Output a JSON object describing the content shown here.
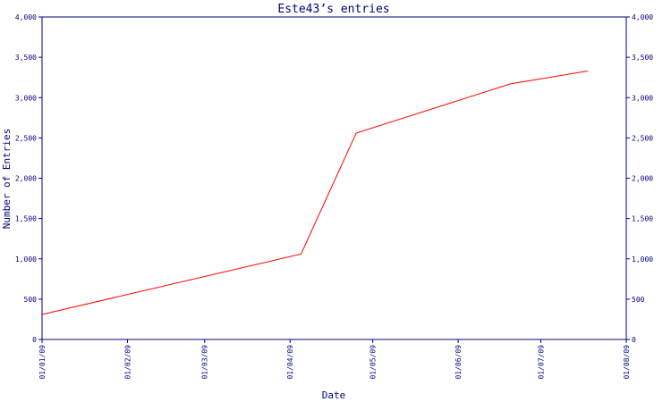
{
  "chart_data": {
    "type": "line",
    "title": "Este43’s entries",
    "xlabel": "Date",
    "ylabel": "Number of Entries",
    "ylim": [
      0,
      4000
    ],
    "xlim": [
      "2009-01-01",
      "2009-08-01"
    ],
    "y_ticks": [
      0,
      500,
      1000,
      1500,
      2000,
      2500,
      3000,
      3500,
      4000
    ],
    "y_tick_labels": [
      "0",
      "500",
      "1,000",
      "1,500",
      "2,000",
      "2,500",
      "3,000",
      "3,500",
      "4,000"
    ],
    "x_ticks": [
      "2009-01-01",
      "2009-02-01",
      "2009-03-01",
      "2009-04-01",
      "2009-05-01",
      "2009-06-01",
      "2009-07-01",
      "2009-08-01"
    ],
    "x_tick_labels": [
      "01/01/09",
      "01/02/09",
      "01/03/09",
      "01/04/09",
      "01/05/09",
      "01/06/09",
      "01/07/09",
      "01/08/09"
    ],
    "right_axis": true,
    "grid": false,
    "legend": "none",
    "series": [
      {
        "color": "#ff0000",
        "points": [
          {
            "x": "2009-01-01",
            "y": 310
          },
          {
            "x": "2009-04-05",
            "y": 1060
          },
          {
            "x": "2009-04-25",
            "y": 2560
          },
          {
            "x": "2009-06-20",
            "y": 3170
          },
          {
            "x": "2009-07-18",
            "y": 3330
          }
        ]
      }
    ]
  }
}
